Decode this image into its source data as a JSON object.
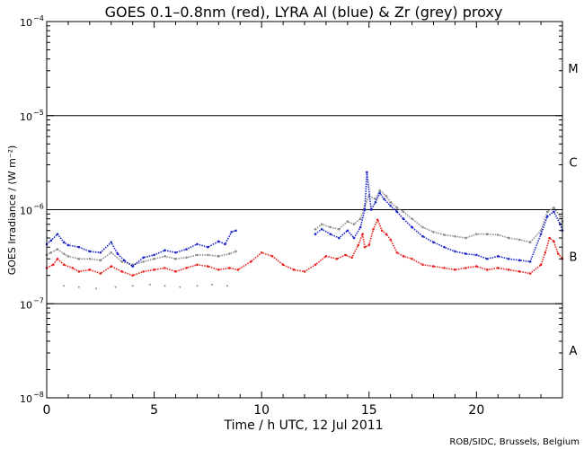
{
  "chart_data": {
    "type": "scatter",
    "title": "GOES 0.1–0.8nm (red), LYRA Al (blue) & Zr (grey) proxy",
    "xlabel": "Time / h UTC, 12 Jul 2011",
    "ylabel": "GOES Irradiance / (W m⁻²)",
    "xlim": [
      0,
      24
    ],
    "ylim": [
      1e-08,
      0.0001
    ],
    "yscale": "log",
    "x_ticks": [
      0,
      5,
      10,
      15,
      20
    ],
    "y_ticks": [
      {
        "value": 1e-08,
        "base": "10",
        "exp": "−8"
      },
      {
        "value": 1e-07,
        "base": "10",
        "exp": "−7"
      },
      {
        "value": 1e-06,
        "base": "10",
        "exp": "−6"
      },
      {
        "value": 1e-05,
        "base": "10",
        "exp": "−5"
      },
      {
        "value": 0.0001,
        "base": "10",
        "exp": "−4"
      }
    ],
    "class_lines": [
      1e-07,
      1e-06,
      1e-05
    ],
    "flare_classes": [
      {
        "label": "A",
        "value": 3.2e-08
      },
      {
        "label": "B",
        "value": 3.2e-07
      },
      {
        "label": "C",
        "value": 3.2e-06
      },
      {
        "label": "M",
        "value": 3.2e-05
      }
    ],
    "series": [
      {
        "name": "GOES 0.1-0.8nm",
        "color": "#e8201c",
        "x": [
          0.0,
          0.3,
          0.5,
          0.8,
          1.2,
          1.5,
          2.0,
          2.5,
          3.0,
          3.5,
          4.0,
          4.5,
          5.0,
          5.5,
          6.0,
          6.5,
          7.0,
          7.5,
          8.0,
          8.5,
          8.9,
          9.5,
          10.0,
          10.5,
          11.0,
          11.5,
          12.0,
          12.5,
          13.0,
          13.5,
          13.9,
          14.2,
          14.5,
          14.7,
          14.8,
          15.0,
          15.2,
          15.4,
          15.6,
          15.8,
          16.0,
          16.3,
          16.6,
          17.0,
          17.5,
          18.0,
          18.5,
          19.0,
          19.5,
          20.0,
          20.5,
          21.0,
          21.5,
          22.0,
          22.5,
          23.0,
          23.2,
          23.4,
          23.6,
          23.8,
          24.0
        ],
        "values": [
          2.4e-07,
          2.6e-07,
          3e-07,
          2.6e-07,
          2.4e-07,
          2.2e-07,
          2.3e-07,
          2.1e-07,
          2.5e-07,
          2.2e-07,
          2e-07,
          2.2e-07,
          2.3e-07,
          2.4e-07,
          2.2e-07,
          2.4e-07,
          2.6e-07,
          2.5e-07,
          2.3e-07,
          2.4e-07,
          2.3e-07,
          2.8e-07,
          3.5e-07,
          3.2e-07,
          2.6e-07,
          2.3e-07,
          2.2e-07,
          2.6e-07,
          3.2e-07,
          3e-07,
          3.3e-07,
          3.1e-07,
          4.2e-07,
          5.5e-07,
          4e-07,
          4.2e-07,
          6.2e-07,
          7.8e-07,
          6e-07,
          5.5e-07,
          4.8e-07,
          3.5e-07,
          3.2e-07,
          3e-07,
          2.6e-07,
          2.5e-07,
          2.4e-07,
          2.3e-07,
          2.4e-07,
          2.5e-07,
          2.3e-07,
          2.4e-07,
          2.3e-07,
          2.2e-07,
          2.1e-07,
          2.6e-07,
          3.5e-07,
          5e-07,
          4.6e-07,
          3.4e-07,
          3e-07
        ]
      },
      {
        "name": "LYRA Al proxy",
        "color": "#1a24c8",
        "x": [
          0.0,
          0.2,
          0.5,
          0.8,
          1.0,
          1.5,
          2.0,
          2.5,
          3.0,
          3.3,
          3.6,
          4.0,
          4.5,
          5.0,
          5.5,
          6.0,
          6.5,
          7.0,
          7.5,
          8.0,
          8.3,
          8.6,
          8.8,
          12.5,
          12.8,
          13.2,
          13.6,
          14.0,
          14.3,
          14.6,
          14.8,
          14.9,
          15.1,
          15.3,
          15.5,
          15.7,
          16.0,
          16.3,
          16.6,
          17.0,
          17.5,
          18.0,
          18.5,
          19.0,
          19.5,
          20.0,
          20.5,
          21.0,
          21.5,
          22.0,
          22.5,
          23.0,
          23.3,
          23.6,
          23.9,
          24.0
        ],
        "values": [
          4.3e-07,
          4.7e-07,
          5.5e-07,
          4.5e-07,
          4.2e-07,
          4e-07,
          3.6e-07,
          3.5e-07,
          4.5e-07,
          3.4e-07,
          2.9e-07,
          2.5e-07,
          3.1e-07,
          3.3e-07,
          3.7e-07,
          3.5e-07,
          3.8e-07,
          4.3e-07,
          4e-07,
          4.6e-07,
          4.3e-07,
          5.8e-07,
          6e-07,
          5.5e-07,
          6.2e-07,
          5.5e-07,
          5e-07,
          6e-07,
          5e-07,
          6.5e-07,
          1e-06,
          2.5e-06,
          1e-06,
          1.2e-06,
          1.5e-06,
          1.3e-06,
          1.1e-06,
          9.5e-07,
          8e-07,
          6.5e-07,
          5.2e-07,
          4.5e-07,
          4e-07,
          3.6e-07,
          3.4e-07,
          3.3e-07,
          3e-07,
          3.2e-07,
          3e-07,
          2.9e-07,
          2.8e-07,
          5.5e-07,
          8.5e-07,
          9.5e-07,
          7e-07,
          6e-07
        ]
      },
      {
        "name": "LYRA Zr proxy",
        "color": "#8c8c8c",
        "x": [
          0.0,
          0.2,
          0.5,
          0.8,
          1.0,
          1.5,
          2.0,
          2.5,
          3.0,
          3.5,
          4.0,
          4.5,
          5.0,
          5.5,
          6.0,
          6.5,
          7.0,
          7.5,
          8.0,
          8.5,
          8.8,
          12.5,
          12.8,
          13.2,
          13.6,
          14.0,
          14.3,
          14.6,
          14.8,
          15.0,
          15.3,
          15.5,
          15.8,
          16.0,
          16.3,
          16.6,
          17.0,
          17.5,
          18.0,
          18.5,
          19.0,
          19.5,
          20.0,
          20.5,
          21.0,
          21.5,
          22.0,
          22.5,
          23.0,
          23.3,
          23.6,
          23.9,
          24.0
        ],
        "values": [
          3.3e-07,
          3.5e-07,
          3.8e-07,
          3.4e-07,
          3.2e-07,
          3e-07,
          3e-07,
          2.9e-07,
          3.5e-07,
          2.8e-07,
          2.6e-07,
          2.8e-07,
          3e-07,
          3.2e-07,
          3e-07,
          3.1e-07,
          3.3e-07,
          3.3e-07,
          3.2e-07,
          3.4e-07,
          3.6e-07,
          6.2e-07,
          7e-07,
          6.5e-07,
          6.2e-07,
          7.5e-07,
          7e-07,
          8e-07,
          1.1e-06,
          1.4e-06,
          1.3e-06,
          1.6e-06,
          1.4e-06,
          1.2e-06,
          1.05e-06,
          9.5e-07,
          8e-07,
          6.5e-07,
          5.8e-07,
          5.4e-07,
          5.2e-07,
          5e-07,
          5.5e-07,
          5.5e-07,
          5.4e-07,
          5e-07,
          4.8e-07,
          4.5e-07,
          6e-07,
          9.5e-07,
          1.05e-06,
          8.5e-07,
          7.5e-07
        ]
      }
    ],
    "zr_low_points": {
      "name": "LYRA Zr proxy (low scattered points)",
      "color": "#8c8c8c",
      "x": [
        0.8,
        1.5,
        2.3,
        3.2,
        4.0,
        4.8,
        5.5,
        6.2,
        7.0,
        7.7,
        8.4
      ],
      "values": [
        1.55e-07,
        1.5e-07,
        1.45e-07,
        1.5e-07,
        1.55e-07,
        1.6e-07,
        1.55e-07,
        1.5e-07,
        1.55e-07,
        1.6e-07,
        1.55e-07
      ]
    },
    "credit": "ROB/SIDC, Brussels, Belgium"
  }
}
